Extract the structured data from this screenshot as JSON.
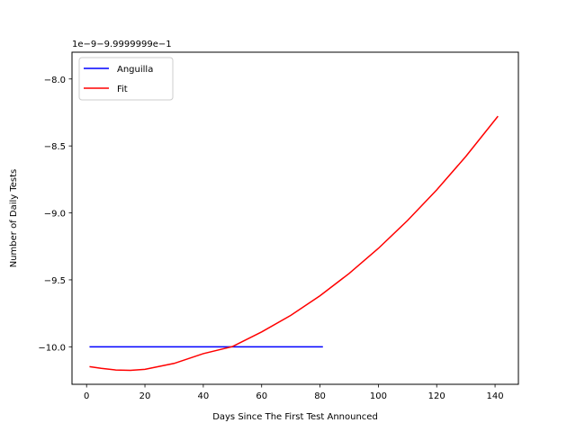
{
  "chart_data": {
    "type": "line",
    "xlabel": "Days Since The First Test Announced",
    "ylabel": "Number of Daily Tests",
    "offset_text": "1e−9−9.9999999e−1",
    "xlim": [
      -5.0,
      148.0
    ],
    "ylim": [
      -10.28,
      -7.8
    ],
    "x_ticks": [
      0,
      20,
      40,
      60,
      80,
      100,
      120,
      140
    ],
    "x_tick_labels": [
      "0",
      "20",
      "40",
      "60",
      "80",
      "100",
      "120",
      "140"
    ],
    "y_ticks": [
      -10.0,
      -9.5,
      -9.0,
      -8.5,
      -8.0
    ],
    "y_tick_labels": [
      "−10.0",
      "−9.5",
      "−9.0",
      "−8.5",
      "−8.0"
    ],
    "grid": false,
    "legend_position": "top-left",
    "series": [
      {
        "name": "Anguilla",
        "color": "#0000ff",
        "x": [
          1,
          81
        ],
        "y": [
          -10.0,
          -10.0
        ]
      },
      {
        "name": "Fit",
        "color": "#ff0000",
        "x": [
          1,
          5,
          10,
          15,
          20,
          30,
          40,
          50,
          60,
          70,
          80,
          90,
          100,
          110,
          120,
          130,
          141
        ],
        "y": [
          -10.148,
          -10.161,
          -10.173,
          -10.176,
          -10.168,
          -10.124,
          -10.051,
          -9.998,
          -9.889,
          -9.765,
          -9.619,
          -9.452,
          -9.265,
          -9.057,
          -8.828,
          -8.578,
          -8.278
        ]
      }
    ]
  }
}
